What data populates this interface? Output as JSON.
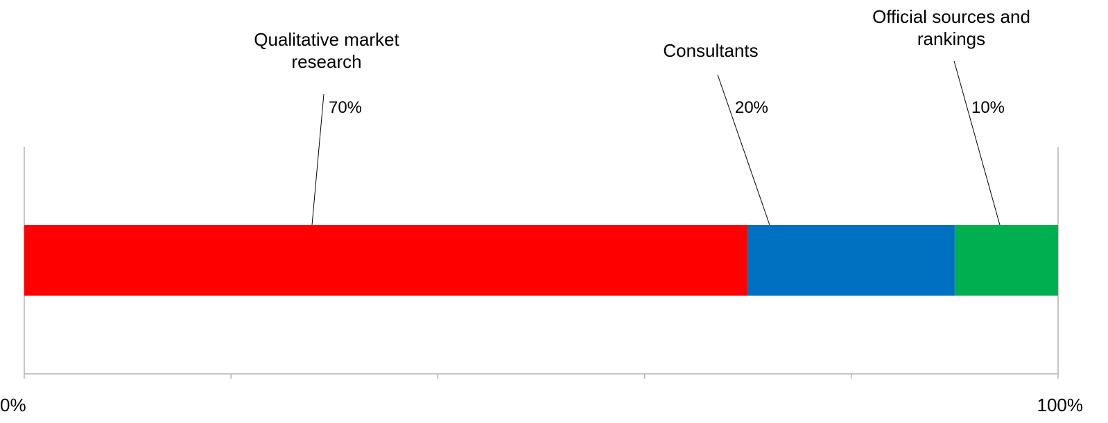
{
  "chart_data": {
    "type": "bar",
    "orientation": "horizontal",
    "stacked": true,
    "percent_stacked": true,
    "categories": [
      ""
    ],
    "series": [
      {
        "name": "Qualitative market research",
        "values": [
          70
        ],
        "label": "70%",
        "color": "#ff0000"
      },
      {
        "name": "Consultants",
        "values": [
          20
        ],
        "label": "20%",
        "color": "#0070c0"
      },
      {
        "name": "Official sources and rankings",
        "values": [
          10
        ],
        "label": "10%",
        "color": "#00b050"
      }
    ],
    "xlim": [
      0,
      100
    ],
    "x_tick_values": [
      0,
      20,
      40,
      60,
      80,
      100
    ],
    "x_tick_labels": [
      "0%",
      "",
      "",
      "",
      "",
      "100%"
    ],
    "title": "",
    "xlabel": "",
    "ylabel": "",
    "grid": false,
    "legend": "none"
  }
}
